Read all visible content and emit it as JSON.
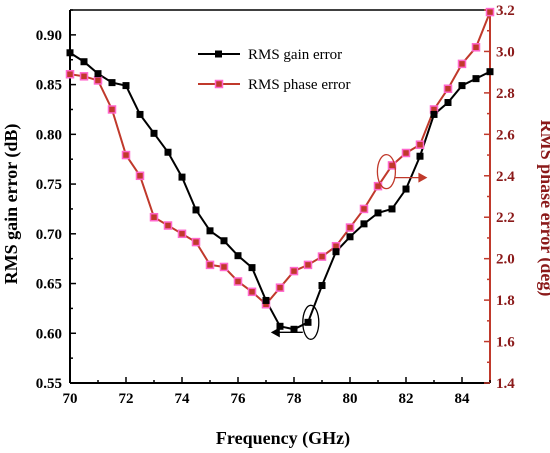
{
  "chart_data": {
    "type": "line",
    "xlabel": "Frequency (GHz)",
    "ylabel_left": "RMS gain error (dB)",
    "ylabel_right": "RMS phase error (deg)",
    "xlim": [
      70,
      85
    ],
    "ylim_left": [
      0.55,
      0.925
    ],
    "ylim_right": [
      1.4,
      3.2
    ],
    "x_ticks": [
      70,
      72,
      74,
      76,
      78,
      80,
      82,
      84
    ],
    "y_ticks_left": [
      "0.55",
      "0.60",
      "0.65",
      "0.70",
      "0.75",
      "0.80",
      "0.85",
      "0.90"
    ],
    "y_ticks_right": [
      "1.4",
      "1.6",
      "1.8",
      "2.0",
      "2.2",
      "2.4",
      "2.6",
      "2.8",
      "3.0",
      "3.2"
    ],
    "legend_position": "top-center",
    "grid": false,
    "colors": {
      "gain": "#000000",
      "phase": "#c0392b",
      "phase_marker_face": "#ff66cc"
    },
    "series": [
      {
        "name": "RMS gain error",
        "axis": "left",
        "x": [
          70,
          70.5,
          71,
          71.5,
          72,
          72.5,
          73,
          73.5,
          74,
          74.5,
          75,
          75.5,
          76,
          76.5,
          77,
          77.5,
          78,
          78.5,
          79,
          79.5,
          80,
          80.5,
          81,
          81.5,
          82,
          82.5,
          83,
          83.5,
          84,
          84.5,
          85
        ],
        "values": [
          0.882,
          0.873,
          0.861,
          0.852,
          0.849,
          0.82,
          0.801,
          0.782,
          0.757,
          0.724,
          0.703,
          0.693,
          0.678,
          0.666,
          0.633,
          0.607,
          0.604,
          0.611,
          0.648,
          0.682,
          0.697,
          0.71,
          0.721,
          0.725,
          0.745,
          0.778,
          0.82,
          0.832,
          0.849,
          0.856,
          0.863
        ]
      },
      {
        "name": "RMS phase error",
        "axis": "right",
        "x": [
          70,
          70.5,
          71,
          71.5,
          72,
          72.5,
          73,
          73.5,
          74,
          74.5,
          75,
          75.5,
          76,
          76.5,
          77,
          77.5,
          78,
          78.5,
          79,
          79.5,
          80,
          80.5,
          81,
          81.5,
          82,
          82.5,
          83,
          83.5,
          84,
          84.5,
          85
        ],
        "values": [
          2.89,
          2.88,
          2.86,
          2.72,
          2.5,
          2.4,
          2.2,
          2.16,
          2.12,
          2.08,
          1.97,
          1.96,
          1.89,
          1.84,
          1.78,
          1.86,
          1.94,
          1.97,
          2.01,
          2.06,
          2.15,
          2.24,
          2.35,
          2.45,
          2.51,
          2.55,
          2.72,
          2.82,
          2.94,
          3.02,
          3.19
        ]
      }
    ]
  }
}
